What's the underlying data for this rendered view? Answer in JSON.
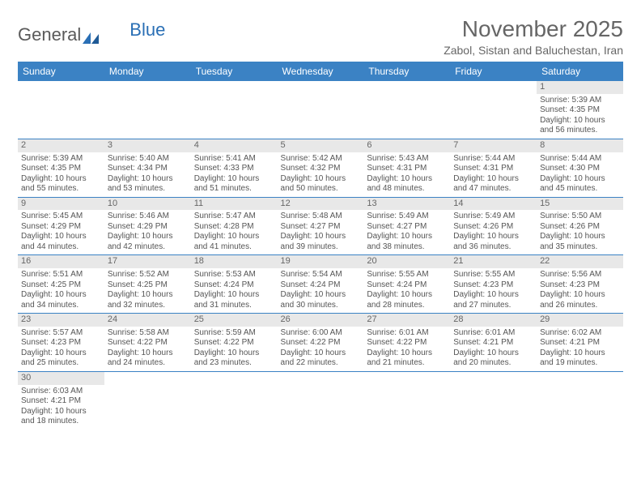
{
  "logo": {
    "text1": "General",
    "text2": "Blue"
  },
  "title": "November 2025",
  "location": "Zabol, Sistan and Baluchestan, Iran",
  "colors": {
    "header_bg": "#3b82c4",
    "header_text": "#ffffff",
    "daynum_bg": "#e8e8e8",
    "border": "#3b82c4",
    "text": "#555555"
  },
  "weekdays": [
    "Sunday",
    "Monday",
    "Tuesday",
    "Wednesday",
    "Thursday",
    "Friday",
    "Saturday"
  ],
  "weeks": [
    [
      null,
      null,
      null,
      null,
      null,
      null,
      {
        "n": "1",
        "rise": "Sunrise: 5:39 AM",
        "set": "Sunset: 4:35 PM",
        "d1": "Daylight: 10 hours",
        "d2": "and 56 minutes."
      }
    ],
    [
      {
        "n": "2",
        "rise": "Sunrise: 5:39 AM",
        "set": "Sunset: 4:35 PM",
        "d1": "Daylight: 10 hours",
        "d2": "and 55 minutes."
      },
      {
        "n": "3",
        "rise": "Sunrise: 5:40 AM",
        "set": "Sunset: 4:34 PM",
        "d1": "Daylight: 10 hours",
        "d2": "and 53 minutes."
      },
      {
        "n": "4",
        "rise": "Sunrise: 5:41 AM",
        "set": "Sunset: 4:33 PM",
        "d1": "Daylight: 10 hours",
        "d2": "and 51 minutes."
      },
      {
        "n": "5",
        "rise": "Sunrise: 5:42 AM",
        "set": "Sunset: 4:32 PM",
        "d1": "Daylight: 10 hours",
        "d2": "and 50 minutes."
      },
      {
        "n": "6",
        "rise": "Sunrise: 5:43 AM",
        "set": "Sunset: 4:31 PM",
        "d1": "Daylight: 10 hours",
        "d2": "and 48 minutes."
      },
      {
        "n": "7",
        "rise": "Sunrise: 5:44 AM",
        "set": "Sunset: 4:31 PM",
        "d1": "Daylight: 10 hours",
        "d2": "and 47 minutes."
      },
      {
        "n": "8",
        "rise": "Sunrise: 5:44 AM",
        "set": "Sunset: 4:30 PM",
        "d1": "Daylight: 10 hours",
        "d2": "and 45 minutes."
      }
    ],
    [
      {
        "n": "9",
        "rise": "Sunrise: 5:45 AM",
        "set": "Sunset: 4:29 PM",
        "d1": "Daylight: 10 hours",
        "d2": "and 44 minutes."
      },
      {
        "n": "10",
        "rise": "Sunrise: 5:46 AM",
        "set": "Sunset: 4:29 PM",
        "d1": "Daylight: 10 hours",
        "d2": "and 42 minutes."
      },
      {
        "n": "11",
        "rise": "Sunrise: 5:47 AM",
        "set": "Sunset: 4:28 PM",
        "d1": "Daylight: 10 hours",
        "d2": "and 41 minutes."
      },
      {
        "n": "12",
        "rise": "Sunrise: 5:48 AM",
        "set": "Sunset: 4:27 PM",
        "d1": "Daylight: 10 hours",
        "d2": "and 39 minutes."
      },
      {
        "n": "13",
        "rise": "Sunrise: 5:49 AM",
        "set": "Sunset: 4:27 PM",
        "d1": "Daylight: 10 hours",
        "d2": "and 38 minutes."
      },
      {
        "n": "14",
        "rise": "Sunrise: 5:49 AM",
        "set": "Sunset: 4:26 PM",
        "d1": "Daylight: 10 hours",
        "d2": "and 36 minutes."
      },
      {
        "n": "15",
        "rise": "Sunrise: 5:50 AM",
        "set": "Sunset: 4:26 PM",
        "d1": "Daylight: 10 hours",
        "d2": "and 35 minutes."
      }
    ],
    [
      {
        "n": "16",
        "rise": "Sunrise: 5:51 AM",
        "set": "Sunset: 4:25 PM",
        "d1": "Daylight: 10 hours",
        "d2": "and 34 minutes."
      },
      {
        "n": "17",
        "rise": "Sunrise: 5:52 AM",
        "set": "Sunset: 4:25 PM",
        "d1": "Daylight: 10 hours",
        "d2": "and 32 minutes."
      },
      {
        "n": "18",
        "rise": "Sunrise: 5:53 AM",
        "set": "Sunset: 4:24 PM",
        "d1": "Daylight: 10 hours",
        "d2": "and 31 minutes."
      },
      {
        "n": "19",
        "rise": "Sunrise: 5:54 AM",
        "set": "Sunset: 4:24 PM",
        "d1": "Daylight: 10 hours",
        "d2": "and 30 minutes."
      },
      {
        "n": "20",
        "rise": "Sunrise: 5:55 AM",
        "set": "Sunset: 4:24 PM",
        "d1": "Daylight: 10 hours",
        "d2": "and 28 minutes."
      },
      {
        "n": "21",
        "rise": "Sunrise: 5:55 AM",
        "set": "Sunset: 4:23 PM",
        "d1": "Daylight: 10 hours",
        "d2": "and 27 minutes."
      },
      {
        "n": "22",
        "rise": "Sunrise: 5:56 AM",
        "set": "Sunset: 4:23 PM",
        "d1": "Daylight: 10 hours",
        "d2": "and 26 minutes."
      }
    ],
    [
      {
        "n": "23",
        "rise": "Sunrise: 5:57 AM",
        "set": "Sunset: 4:23 PM",
        "d1": "Daylight: 10 hours",
        "d2": "and 25 minutes."
      },
      {
        "n": "24",
        "rise": "Sunrise: 5:58 AM",
        "set": "Sunset: 4:22 PM",
        "d1": "Daylight: 10 hours",
        "d2": "and 24 minutes."
      },
      {
        "n": "25",
        "rise": "Sunrise: 5:59 AM",
        "set": "Sunset: 4:22 PM",
        "d1": "Daylight: 10 hours",
        "d2": "and 23 minutes."
      },
      {
        "n": "26",
        "rise": "Sunrise: 6:00 AM",
        "set": "Sunset: 4:22 PM",
        "d1": "Daylight: 10 hours",
        "d2": "and 22 minutes."
      },
      {
        "n": "27",
        "rise": "Sunrise: 6:01 AM",
        "set": "Sunset: 4:22 PM",
        "d1": "Daylight: 10 hours",
        "d2": "and 21 minutes."
      },
      {
        "n": "28",
        "rise": "Sunrise: 6:01 AM",
        "set": "Sunset: 4:21 PM",
        "d1": "Daylight: 10 hours",
        "d2": "and 20 minutes."
      },
      {
        "n": "29",
        "rise": "Sunrise: 6:02 AM",
        "set": "Sunset: 4:21 PM",
        "d1": "Daylight: 10 hours",
        "d2": "and 19 minutes."
      }
    ],
    [
      {
        "n": "30",
        "rise": "Sunrise: 6:03 AM",
        "set": "Sunset: 4:21 PM",
        "d1": "Daylight: 10 hours",
        "d2": "and 18 minutes."
      },
      null,
      null,
      null,
      null,
      null,
      null
    ]
  ]
}
